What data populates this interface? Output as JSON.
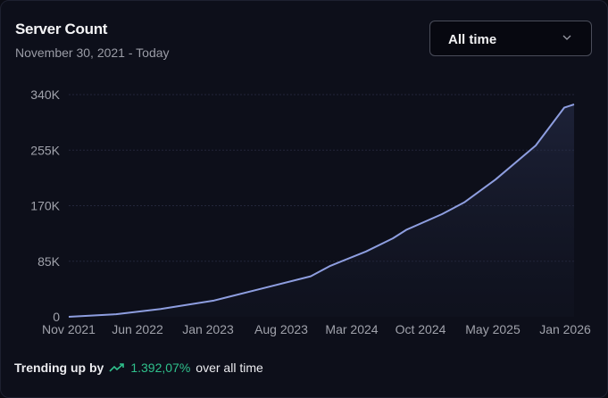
{
  "header": {
    "title": "Server Count",
    "subtitle": "November 30, 2021 - Today"
  },
  "range_select": {
    "selected": "All time",
    "icon": "chevron-down-icon"
  },
  "footer": {
    "prefix": "Trending up by",
    "icon": "trending-up-icon",
    "percent": "1.392,07%",
    "suffix": "over all time"
  },
  "colors": {
    "line": "#8e9ee0",
    "trend_green": "#2fc18c",
    "background": "#0d0f1a"
  },
  "chart_data": {
    "type": "area",
    "title": "Server Count",
    "subtitle": "November 30, 2021 - Today",
    "xlabel": "",
    "ylabel": "",
    "ylim": [
      0,
      340000
    ],
    "y_ticks": [
      "0",
      "85K",
      "170K",
      "255K",
      "340K"
    ],
    "x_ticks": [
      "Nov 2021",
      "Jun 2022",
      "Jan 2023",
      "Aug 2023",
      "Mar 2024",
      "Oct 2024",
      "May 2025",
      "Jan 2026"
    ],
    "grid": "horizontal dashed",
    "legend": "none",
    "series": [
      {
        "name": "Server Count",
        "x": [
          "Nov 2021",
          "Mar 2022",
          "Jul 2022",
          "Dec 2022",
          "Apr 2023",
          "Sep 2023",
          "Nov 2023",
          "Mar 2024",
          "Jun 2024",
          "Aug 2024",
          "Nov 2024",
          "Jan 2025",
          "Apr 2025",
          "Sep 2025",
          "Dec 2025",
          "Jan 2026"
        ],
        "values": [
          0,
          4000,
          12000,
          25000,
          42000,
          62000,
          78000,
          100000,
          120000,
          133000,
          157000,
          175000,
          210000,
          262000,
          320000,
          325000
        ]
      }
    ]
  }
}
